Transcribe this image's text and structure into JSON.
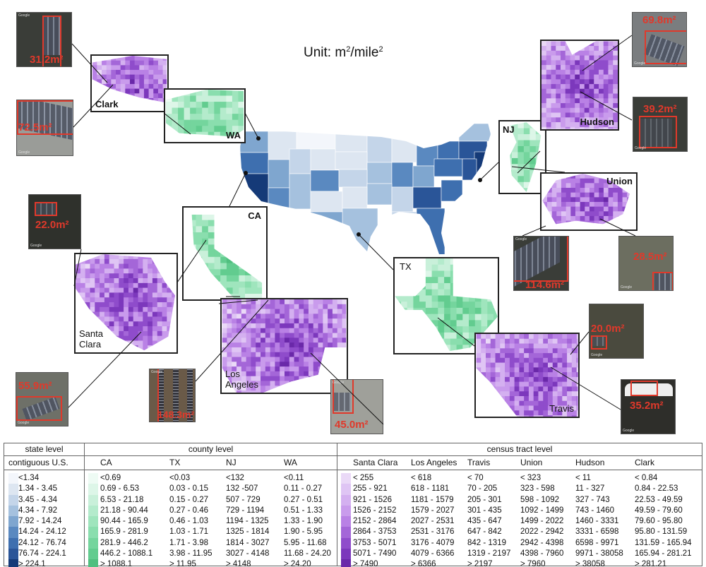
{
  "title": {
    "prefix": "Unit: m",
    "sup1": "2",
    "slash": "/mile",
    "sup2": "2"
  },
  "colors": {
    "state": [
      "#f3f6fb",
      "#dde6f1",
      "#c4d5e9",
      "#a5c1de",
      "#7fa6cf",
      "#5a89c0",
      "#3e6faf",
      "#2a5598",
      "#153a78"
    ],
    "county": [
      "#eefbf4",
      "#ddf6e8",
      "#c9f0da",
      "#b4ebcc",
      "#9fe5bd",
      "#8adeae",
      "#74d59d",
      "#62cc8f",
      "#50bf7f"
    ],
    "tract": [
      "#ead9f7",
      "#dfc5f4",
      "#d4b0f0",
      "#c99bec",
      "#b981e5",
      "#a466d8",
      "#8f4ccb",
      "#7c38bc",
      "#6a28a9"
    ],
    "highlight": "#e0392b"
  },
  "regions": {
    "clark": "Clark",
    "wa": "WA",
    "ca": "CA",
    "santa_clara": "Santa Clara",
    "los_angeles": "Los Angeles",
    "tx": "TX",
    "travis": "Travis",
    "nj": "NJ",
    "hudson": "Hudson",
    "union": "Union"
  },
  "thumbnails": {
    "clark_1": "31.2m²",
    "clark_2": "72.5m²",
    "hudson_1": "69.8m²",
    "hudson_2": "39.2m²",
    "union_1": "114.6m²",
    "union_2": "28.5m²",
    "santa_clara_1": "22.0m²",
    "santa_clara_2": "55.9m²",
    "los_angeles_1": "148.3m²",
    "los_angeles_2": "45.0m²",
    "travis_1": "20.0m²",
    "travis_2": "35.2m²",
    "watermark": "Google"
  },
  "legend": {
    "state_level": "state level",
    "county_level": "county level",
    "tract_level": "census tract level",
    "state_columns": [
      {
        "name": "contiguous U.S.",
        "values": [
          "<1.34",
          "1.34 - 3.45",
          "3.45 - 4.34",
          "4.34 - 7.92",
          "7.92 - 14.24",
          "14.24 - 24.12",
          "24.12 - 76.74",
          "76.74 - 224.1",
          "> 224.1"
        ]
      }
    ],
    "county_columns": [
      {
        "name": "CA",
        "values": [
          "<0.69",
          "0.69 - 6.53",
          "6.53 - 21.18",
          "21.18 - 90.44",
          "90.44 - 165.9",
          "165.9 - 281.9",
          "281.9 - 446.2",
          "446.2 - 1088.1",
          "> 1088.1"
        ]
      },
      {
        "name": "TX",
        "values": [
          "<0.03",
          "0.03 - 0.15",
          "0.15 - 0.27",
          "0.27 - 0.46",
          "0.46 - 1.03",
          "1.03 - 1.71",
          "1.71 - 3.98",
          "3.98 - 11.95",
          "> 11.95"
        ]
      },
      {
        "name": "NJ",
        "values": [
          "<132",
          "132 -507",
          "507 - 729",
          "729 - 1194",
          "1194 - 1325",
          "1325 - 1814",
          "1814 - 3027",
          "3027 - 4148",
          "> 4148"
        ]
      },
      {
        "name": "WA",
        "values": [
          "<0.11",
          "0.11 - 0.27",
          "0.27 - 0.51",
          "0.51 - 1.33",
          "1.33 - 1.90",
          "1.90 - 5.95",
          "5.95 - 11.68",
          "11.68 - 24.20",
          "> 24.20"
        ]
      }
    ],
    "tract_columns": [
      {
        "name": "Santa Clara",
        "values": [
          "< 255",
          "255 - 921",
          "921 - 1526",
          "1526 - 2152",
          "2152 - 2864",
          "2864 - 3753",
          "3753 - 5071",
          "5071 - 7490",
          "> 7490"
        ]
      },
      {
        "name": "Los Angeles",
        "values": [
          "< 618",
          "618 - 1181",
          "1181 - 1579",
          "1579 - 2027",
          "2027 - 2531",
          "2531 - 3176",
          "3176 - 4079",
          "4079 - 6366",
          "> 6366"
        ]
      },
      {
        "name": "Travis",
        "values": [
          "< 70",
          "70 - 205",
          "205 - 301",
          "301 - 435",
          "435 - 647",
          "647 - 842",
          "842 - 1319",
          "1319 - 2197",
          "> 2197"
        ]
      },
      {
        "name": "Union",
        "values": [
          "< 323",
          "323 - 598",
          "598 - 1092",
          "1092 - 1499",
          "1499 - 2022",
          "2022 - 2942",
          "2942 - 4398",
          "4398 - 7960",
          "> 7960"
        ]
      },
      {
        "name": "Hudson",
        "values": [
          "< 11",
          "11 - 327",
          "327 - 743",
          "743 - 1460",
          "1460 - 3331",
          "3331 - 6598",
          "6598 - 9971",
          "9971 - 38058",
          "> 38058"
        ]
      },
      {
        "name": "Clark",
        "values": [
          "< 0.84",
          "0.84 - 22.53",
          "22.53 - 49.59",
          "49.59 - 79.60",
          "79.60 - 95.80",
          "95.80 - 131.59",
          "131.59 - 165.94",
          "165.94 - 281.21",
          "> 281.21"
        ]
      }
    ]
  }
}
